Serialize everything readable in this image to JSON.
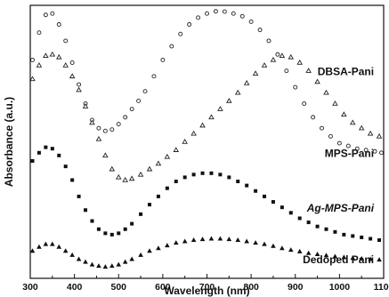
{
  "chart_data": {
    "type": "scatter",
    "xlabel": "Wavelength (nm)",
    "ylabel": "Absorbance (a.u.)",
    "xlim": [
      300,
      1100
    ],
    "ylim": [
      0,
      1
    ],
    "x_ticks": [
      300,
      400,
      500,
      600,
      700,
      800,
      900,
      1000,
      1100
    ],
    "x_tick_labels": [
      "300",
      "400",
      "500",
      "600",
      "700",
      "800",
      "900",
      "1000",
      "1100"
    ],
    "y_ticks_shown": false,
    "grid": false,
    "legend": "inline labels at right",
    "series": [
      {
        "name": "DBSA-Pani",
        "marker": "open-circle",
        "color": "#222222",
        "x": [
          305,
          320,
          335,
          350,
          365,
          380,
          395,
          410,
          425,
          440,
          455,
          470,
          485,
          500,
          515,
          530,
          545,
          560,
          580,
          600,
          620,
          640,
          660,
          680,
          700,
          720,
          740,
          760,
          780,
          800,
          820,
          840,
          860,
          880,
          900,
          920,
          940,
          960,
          980,
          1000,
          1020,
          1040,
          1060,
          1080,
          1095
        ],
        "y": [
          0.8,
          0.9,
          0.965,
          0.97,
          0.93,
          0.87,
          0.79,
          0.71,
          0.64,
          0.58,
          0.55,
          0.54,
          0.545,
          0.565,
          0.59,
          0.62,
          0.65,
          0.685,
          0.74,
          0.8,
          0.85,
          0.895,
          0.93,
          0.955,
          0.97,
          0.978,
          0.977,
          0.97,
          0.96,
          0.94,
          0.91,
          0.87,
          0.82,
          0.76,
          0.7,
          0.64,
          0.59,
          0.55,
          0.52,
          0.495,
          0.485,
          0.475,
          0.47,
          0.465,
          0.46
        ]
      },
      {
        "name": "MPS-Pani",
        "marker": "open-triangle",
        "color": "#222222",
        "x": [
          305,
          320,
          335,
          350,
          365,
          380,
          395,
          410,
          425,
          440,
          455,
          470,
          485,
          500,
          515,
          530,
          550,
          570,
          590,
          610,
          630,
          650,
          670,
          690,
          710,
          730,
          750,
          770,
          790,
          810,
          830,
          850,
          870,
          890,
          910,
          930,
          950,
          970,
          990,
          1010,
          1030,
          1050,
          1070,
          1090
        ],
        "y": [
          0.73,
          0.78,
          0.815,
          0.82,
          0.81,
          0.78,
          0.74,
          0.69,
          0.63,
          0.57,
          0.51,
          0.45,
          0.4,
          0.37,
          0.36,
          0.365,
          0.38,
          0.4,
          0.42,
          0.445,
          0.47,
          0.5,
          0.53,
          0.56,
          0.59,
          0.62,
          0.65,
          0.68,
          0.715,
          0.75,
          0.78,
          0.8,
          0.815,
          0.81,
          0.79,
          0.76,
          0.72,
          0.68,
          0.64,
          0.6,
          0.57,
          0.55,
          0.53,
          0.52
        ]
      },
      {
        "name": "Ag-MPS-Pani",
        "marker": "filled-square",
        "color": "#111111",
        "x": [
          305,
          320,
          335,
          350,
          365,
          380,
          395,
          410,
          425,
          440,
          455,
          470,
          485,
          500,
          515,
          530,
          550,
          570,
          590,
          610,
          630,
          650,
          670,
          690,
          710,
          730,
          750,
          770,
          790,
          810,
          830,
          850,
          870,
          890,
          910,
          930,
          950,
          970,
          990,
          1010,
          1030,
          1050,
          1070,
          1090
        ],
        "y": [
          0.43,
          0.46,
          0.48,
          0.475,
          0.45,
          0.41,
          0.36,
          0.3,
          0.25,
          0.21,
          0.18,
          0.165,
          0.16,
          0.165,
          0.18,
          0.2,
          0.235,
          0.27,
          0.3,
          0.33,
          0.355,
          0.37,
          0.38,
          0.385,
          0.385,
          0.38,
          0.37,
          0.355,
          0.34,
          0.32,
          0.3,
          0.28,
          0.26,
          0.24,
          0.22,
          0.205,
          0.19,
          0.18,
          0.17,
          0.16,
          0.155,
          0.15,
          0.145,
          0.14
        ]
      },
      {
        "name": "Dedoped Pani",
        "marker": "filled-triangle",
        "color": "#111111",
        "x": [
          305,
          320,
          335,
          350,
          365,
          380,
          395,
          410,
          425,
          440,
          455,
          470,
          485,
          500,
          515,
          530,
          550,
          570,
          590,
          610,
          630,
          650,
          670,
          690,
          710,
          730,
          750,
          770,
          790,
          810,
          830,
          850,
          870,
          890,
          910,
          930,
          950,
          970,
          990,
          1010,
          1030,
          1050,
          1070,
          1090
        ],
        "y": [
          0.1,
          0.115,
          0.125,
          0.125,
          0.115,
          0.1,
          0.085,
          0.07,
          0.06,
          0.05,
          0.045,
          0.042,
          0.045,
          0.05,
          0.06,
          0.07,
          0.085,
          0.1,
          0.11,
          0.12,
          0.13,
          0.135,
          0.14,
          0.143,
          0.145,
          0.145,
          0.143,
          0.14,
          0.135,
          0.13,
          0.125,
          0.118,
          0.11,
          0.104,
          0.098,
          0.092,
          0.088,
          0.084,
          0.08,
          0.077,
          0.074,
          0.072,
          0.07,
          0.068
        ]
      }
    ],
    "annotations": [
      {
        "text": "DBSA-Pani",
        "series": "DBSA-Pani",
        "italic": false,
        "anchor_x": 1078,
        "anchor_y": 0.745
      },
      {
        "text": "MPS-Pani",
        "series": "MPS-Pani",
        "italic": false,
        "anchor_x": 1078,
        "anchor_y": 0.445
      },
      {
        "text": "Ag-MPS-Pani",
        "series": "Ag-MPS-Pani",
        "italic": true,
        "anchor_x": 1078,
        "anchor_y": 0.245
      },
      {
        "text": "Dedoped Pani",
        "series": "Dedoped Pani",
        "italic": false,
        "anchor_x": 1078,
        "anchor_y": 0.055
      }
    ]
  }
}
